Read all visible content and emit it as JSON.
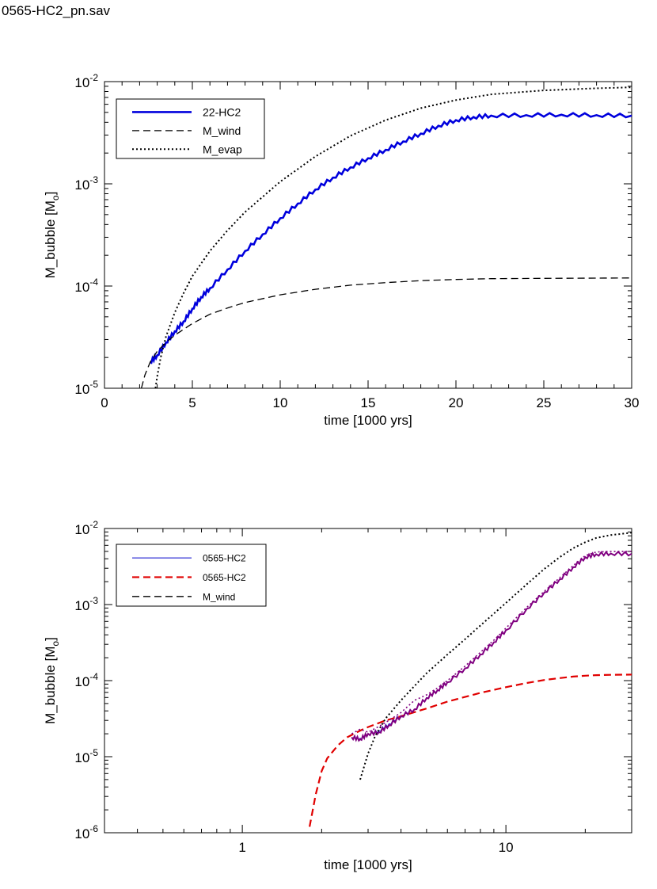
{
  "file_label": "0565-HC2_pn.sav",
  "chart_data": [
    {
      "type": "line",
      "xscale": "linear",
      "yscale": "log",
      "xlabel": "time [1000 yrs]",
      "ylabel_main": "M_bubble [M",
      "ylabel_sub": "o",
      "ylabel_close": "]",
      "xlim": [
        0,
        30
      ],
      "ylim": [
        1e-05,
        0.01
      ],
      "xticks": [
        0,
        5,
        10,
        15,
        20,
        25,
        30
      ],
      "xtick_labels": [
        "0",
        "5",
        "10",
        "15",
        "20",
        "25",
        "30"
      ],
      "ytick_labels": [
        {
          "base": "10",
          "exp": "-5",
          "value": 1e-05
        },
        {
          "base": "10",
          "exp": "-4",
          "value": 0.0001
        },
        {
          "base": "10",
          "exp": "-3",
          "value": 0.001
        },
        {
          "base": "10",
          "exp": "-2",
          "value": 0.01
        }
      ],
      "legend_position": "top-left",
      "series": [
        {
          "name": "22-HC2",
          "color": "#0000dd",
          "dash": "solid",
          "width": 2.6,
          "x": [
            2.6,
            3.0,
            3.5,
            4.0,
            4.5,
            5.0,
            5.5,
            6.0,
            7.0,
            8.0,
            9.0,
            10.0,
            11.0,
            12.0,
            13.0,
            14.0,
            15.0,
            16.0,
            17.0,
            18.0,
            19.0,
            20.0,
            21.0,
            22.0,
            24.0,
            26.0,
            28.0,
            30.0
          ],
          "y": [
            1.8e-05,
            2.1e-05,
            2.8e-05,
            3.6e-05,
            4.5e-05,
            6e-05,
            7.8e-05,
            9.5e-05,
            0.000145,
            0.00022,
            0.00032,
            0.00046,
            0.00064,
            0.00088,
            0.00115,
            0.00145,
            0.00178,
            0.00215,
            0.0026,
            0.0031,
            0.0037,
            0.0042,
            0.0045,
            0.00465,
            0.0047,
            0.00475,
            0.0047,
            0.00465
          ]
        },
        {
          "name": "M_wind",
          "color": "#000000",
          "dash": "dashed",
          "width": 1.3,
          "x": [
            2.1,
            2.3,
            2.6,
            3.0,
            3.5,
            4.0,
            5.0,
            6.0,
            7.0,
            8.0,
            10.0,
            12.0,
            14.0,
            16.0,
            18.0,
            20.0,
            22.0,
            25.0,
            30.0
          ],
          "y": [
            1e-05,
            1.35e-05,
            1.8e-05,
            2.3e-05,
            2.8e-05,
            3.3e-05,
            4.3e-05,
            5.3e-05,
            6.1e-05,
            6.9e-05,
            8.2e-05,
            9.3e-05,
            0.000102,
            0.000108,
            0.000113,
            0.000116,
            0.000118,
            0.000119,
            0.00012
          ]
        },
        {
          "name": "M_evap",
          "color": "#000000",
          "dash": "dotted",
          "width": 2.0,
          "x": [
            2.9,
            3.0,
            3.2,
            3.5,
            4.0,
            4.5,
            5.0,
            6.0,
            7.0,
            8.0,
            10.0,
            12.0,
            14.0,
            16.0,
            18.0,
            20.0,
            22.0,
            25.0,
            28.0,
            30.0
          ],
          "y": [
            1e-05,
            1.3e-05,
            2e-05,
            3.2e-05,
            5.5e-05,
            8.5e-05,
            0.000125,
            0.00022,
            0.00035,
            0.00053,
            0.00105,
            0.00185,
            0.00295,
            0.0042,
            0.0055,
            0.0066,
            0.0075,
            0.0082,
            0.0086,
            0.0088
          ]
        }
      ]
    },
    {
      "type": "line",
      "xscale": "log",
      "yscale": "log",
      "xlabel": "time [1000 yrs]",
      "ylabel_main": "M_bubble [M",
      "ylabel_sub": "o",
      "ylabel_close": "]",
      "xlim": [
        0.3,
        30
      ],
      "ylim": [
        1e-06,
        0.01
      ],
      "xticks": [
        1,
        10
      ],
      "xtick_labels": [
        "1",
        "10"
      ],
      "ytick_labels": [
        {
          "base": "10",
          "exp": "-6",
          "value": 1e-06
        },
        {
          "base": "10",
          "exp": "-5",
          "value": 1e-05
        },
        {
          "base": "10",
          "exp": "-4",
          "value": 0.0001
        },
        {
          "base": "10",
          "exp": "-3",
          "value": 0.001
        },
        {
          "base": "10",
          "exp": "-2",
          "value": 0.01
        }
      ],
      "legend_position": "top-left",
      "series": [
        {
          "name": "0565-HC2",
          "color": "#0000cc",
          "dash": "solid",
          "width": 1.0,
          "x": [
            2.6,
            2.8,
            3.0,
            3.3,
            3.6,
            4.0,
            4.5,
            5.0,
            5.5,
            6.0,
            7.0,
            8.0,
            9.0,
            10.0,
            12.0,
            14.0,
            16.0,
            18.0,
            20.0,
            22.0,
            25.0,
            30.0
          ],
          "y": [
            1.8e-05,
            1.75e-05,
            2e-05,
            2.2e-05,
            2.7e-05,
            3.5e-05,
            4.2e-05,
            6e-05,
            7.5e-05,
            9.5e-05,
            0.000145,
            0.00022,
            0.00032,
            0.00046,
            0.00088,
            0.00145,
            0.00215,
            0.0031,
            0.0042,
            0.0046,
            0.0047,
            0.00465
          ]
        },
        {
          "name": "0565-HC2",
          "color": "#e00000",
          "dash": "dashed",
          "width": 2.2,
          "x": [
            1.8,
            1.9,
            2.0,
            2.1,
            2.3,
            2.5,
            2.8,
            3.0,
            3.5,
            4.0,
            5.0,
            6.0,
            7.0,
            8.0,
            10.0,
            12.0,
            14.0,
            16.0,
            18.0,
            20.0,
            22.0,
            25.0,
            30.0
          ],
          "y": [
            1.2e-06,
            3.2e-06,
            6.5e-06,
            9.5e-06,
            1.4e-05,
            1.8e-05,
            2.2e-05,
            2.45e-05,
            3e-05,
            3.4e-05,
            4.3e-05,
            5.3e-05,
            6.1e-05,
            6.9e-05,
            8.2e-05,
            9.3e-05,
            0.000102,
            0.000108,
            0.000113,
            0.000116,
            0.000118,
            0.000119,
            0.00012
          ]
        },
        {
          "name": "M_wind",
          "color": "#000000",
          "dash": "dashed",
          "width": 1.3,
          "x": [],
          "y": []
        },
        {
          "name": "",
          "color": "#800080",
          "dash": "solid",
          "width": 2.0,
          "x": [
            2.6,
            2.8,
            3.0,
            3.3,
            3.6,
            4.0,
            4.5,
            5.0,
            5.5,
            6.0,
            7.0,
            8.0,
            9.0,
            10.0,
            12.0,
            14.0,
            16.0,
            18.0,
            20.0,
            22.0,
            25.0,
            30.0
          ],
          "y": [
            1.8e-05,
            1.7e-05,
            2e-05,
            2.1e-05,
            2.6e-05,
            3.4e-05,
            4.2e-05,
            5.9e-05,
            7.5e-05,
            9.5e-05,
            0.000145,
            0.00022,
            0.00032,
            0.00046,
            0.00088,
            0.00145,
            0.00215,
            0.0031,
            0.0042,
            0.0046,
            0.0047,
            0.00465
          ]
        },
        {
          "name": "",
          "color": "#800080",
          "dash": "dotted",
          "width": 1.6,
          "x": [
            2.6,
            2.8,
            3.0,
            3.3,
            3.6,
            4.0,
            4.5,
            5.0,
            5.5,
            6.0,
            7.0,
            8.0,
            9.0,
            10.0,
            12.0,
            14.0,
            16.0,
            18.0,
            20.0,
            22.0,
            25.0,
            30.0
          ],
          "y": [
            2e-05,
            2.3e-05,
            2.1e-05,
            2.5e-05,
            3e-05,
            3.8e-05,
            5.5e-05,
            6.5e-05,
            8e-05,
            0.0001,
            0.000155,
            0.000235,
            0.00034,
            0.00049,
            0.00092,
            0.0015,
            0.00225,
            0.00325,
            0.0044,
            0.0049,
            0.005,
            0.005
          ]
        },
        {
          "name": "",
          "color": "#000000",
          "dash": "dotted",
          "width": 2.0,
          "x": [
            2.8,
            2.9,
            3.0,
            3.2,
            3.5,
            4.0,
            4.5,
            5.0,
            6.0,
            7.0,
            8.0,
            10.0,
            12.0,
            14.0,
            16.0,
            18.0,
            20.0,
            22.0,
            25.0,
            30.0
          ],
          "y": [
            5e-06,
            7.5e-06,
            1.1e-05,
            1.9e-05,
            3.2e-05,
            5.5e-05,
            8.5e-05,
            0.000125,
            0.00022,
            0.00035,
            0.00053,
            0.00105,
            0.00185,
            0.00295,
            0.0042,
            0.0055,
            0.0066,
            0.0075,
            0.0082,
            0.0088
          ]
        }
      ]
    }
  ]
}
